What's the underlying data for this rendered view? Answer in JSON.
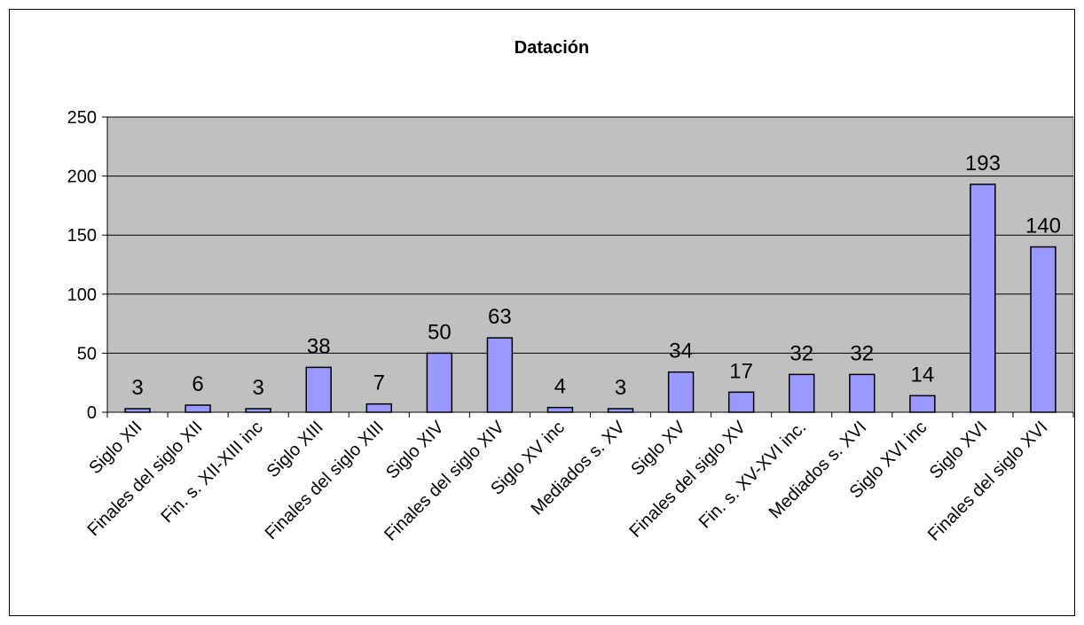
{
  "chart_data": {
    "type": "bar",
    "title": "Datación",
    "xlabel": "",
    "ylabel": "",
    "ylim": [
      0,
      250
    ],
    "yticks": [
      0,
      50,
      100,
      150,
      200,
      250
    ],
    "grid": true,
    "legend": "none",
    "categories": [
      "Siglo XII",
      "Finales del siglo XII",
      "Fin. s. XII-XIII inc",
      "Siglo XIII",
      "Finales del siglo XIII",
      "Siglo XIV",
      "Finales del siglo XIV",
      "Siglo XV inc",
      "Mediados s. XV",
      "Siglo XV",
      "Finales del siglo XV",
      "Fin. s. XV-XVI inc.",
      "Mediados s. XVI",
      "Siglo XVI inc",
      "Siglo XVI",
      "Finales del siglo XVI"
    ],
    "values": [
      3,
      6,
      3,
      38,
      7,
      50,
      63,
      4,
      3,
      34,
      17,
      32,
      32,
      14,
      193,
      140
    ],
    "colors": {
      "bar_fill": "#9999ff",
      "plot_background": "#c0c0c0",
      "gridline": "#000000"
    }
  }
}
